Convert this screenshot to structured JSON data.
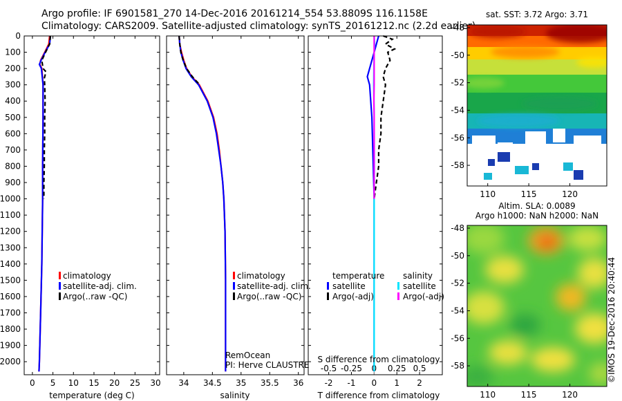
{
  "header": {
    "line1": "Argo profile: IF 6901581_270 14-Dec-2016 20161214_554 53.8809S 116.1158E",
    "line2": "Climatology: CARS2009. Satellite-adjusted climatology: synTS_20161212.nc (2.2d earlier)"
  },
  "colors": {
    "climatology": "#ff0000",
    "satellite": "#0000ff",
    "argo": "#000000",
    "sal_satellite": "#00e5ff",
    "sal_argo": "#ff00ff"
  },
  "chart_data": [
    {
      "type": "line",
      "id": "temperature",
      "xlabel": "temperature (deg C)",
      "ylabel": "",
      "xlim": [
        -2,
        31
      ],
      "ylim": [
        0,
        2080
      ],
      "xticks": [
        "0",
        "5",
        "10",
        "15",
        "20",
        "25",
        "30"
      ],
      "xtick_values": [
        0,
        5,
        10,
        15,
        20,
        25,
        30
      ],
      "yticks": [
        "0",
        "100",
        "200",
        "300",
        "400",
        "500",
        "600",
        "700",
        "800",
        "900",
        "1000",
        "1100",
        "1200",
        "1300",
        "1400",
        "1500",
        "1600",
        "1700",
        "1800",
        "1900",
        "2000"
      ],
      "ytick_values": [
        0,
        100,
        200,
        300,
        400,
        500,
        600,
        700,
        800,
        900,
        1000,
        1100,
        1200,
        1300,
        1400,
        1500,
        1600,
        1700,
        1800,
        1900,
        2000
      ],
      "legend": [
        "climatology",
        "satellite-adj. clim.",
        "Argo(..raw -QC)"
      ],
      "series": [
        {
          "name": "climatology",
          "style": "solid",
          "depth": [
            0,
            50,
            100,
            150,
            175,
            200,
            300,
            500,
            800,
            1000,
            1400,
            1700,
            2000,
            2060
          ],
          "values": [
            4.2,
            4.0,
            3.0,
            2.0,
            1.8,
            2.3,
            2.6,
            2.6,
            2.5,
            2.5,
            2.3,
            2.0,
            1.7,
            1.6
          ]
        },
        {
          "name": "satellite-adj. clim.",
          "style": "solid",
          "depth": [
            0,
            50,
            100,
            150,
            175,
            200,
            300,
            500,
            800,
            1000,
            1400,
            1700,
            2000,
            2060
          ],
          "values": [
            4.4,
            4.2,
            3.1,
            2.1,
            1.7,
            2.2,
            2.6,
            2.6,
            2.5,
            2.5,
            2.3,
            2.0,
            1.7,
            1.6
          ]
        },
        {
          "name": "Argo(..raw -QC)",
          "style": "dashed",
          "depth": [
            0,
            50,
            100,
            150,
            200,
            220,
            260,
            300,
            400,
            500,
            600,
            700,
            800,
            900,
            1000
          ],
          "values": [
            4.4,
            4.2,
            3.2,
            2.3,
            2.6,
            3.3,
            2.9,
            3.0,
            3.1,
            3.0,
            3.0,
            2.9,
            2.9,
            2.8,
            2.8
          ]
        }
      ]
    },
    {
      "type": "line",
      "id": "salinity",
      "xlabel": "salinity",
      "xlim": [
        33.7,
        36.1
      ],
      "ylim": [
        0,
        2080
      ],
      "xticks": [
        "34",
        "34.5",
        "35",
        "35.5",
        "36"
      ],
      "xtick_values": [
        34,
        34.5,
        35,
        35.5,
        36
      ],
      "legend": [
        "climatology",
        "satellite-adj. clim.",
        "Argo(..raw -QC)"
      ],
      "annotations": [
        "RemOcean",
        "PI: Herve CLAUSTRE"
      ],
      "series": [
        {
          "name": "climatology",
          "style": "solid",
          "depth": [
            0,
            50,
            100,
            150,
            200,
            250,
            300,
            400,
            500,
            600,
            700,
            800,
            900,
            1000,
            1200,
            1500,
            2060
          ],
          "values": [
            33.92,
            33.93,
            33.96,
            34.0,
            34.05,
            34.14,
            34.27,
            34.42,
            34.52,
            34.58,
            34.62,
            34.65,
            34.68,
            34.7,
            34.72,
            34.73,
            34.73
          ]
        },
        {
          "name": "satellite-adj. clim.",
          "style": "solid",
          "depth": [
            0,
            50,
            100,
            150,
            200,
            250,
            300,
            400,
            500,
            600,
            700,
            800,
            900,
            1000,
            1200,
            1500,
            2060
          ],
          "values": [
            33.92,
            33.93,
            33.95,
            33.99,
            34.04,
            34.13,
            34.26,
            34.41,
            34.51,
            34.57,
            34.61,
            34.65,
            34.68,
            34.7,
            34.72,
            34.73,
            34.73
          ]
        },
        {
          "name": "Argo(..raw -QC)",
          "style": "dashed",
          "depth": [
            0,
            50,
            100,
            150,
            200,
            250,
            300
          ],
          "values": [
            33.92,
            33.93,
            33.95,
            33.99,
            34.05,
            34.15,
            34.28
          ]
        }
      ]
    },
    {
      "type": "line",
      "id": "difference",
      "xlabel": "T difference from climatology",
      "xlabel_top": "S difference from climatology",
      "xlim": [
        -2.9,
        3.0
      ],
      "ylim": [
        0,
        2080
      ],
      "xticks": [
        "-2",
        "-1",
        "0",
        "1",
        "2"
      ],
      "xtick_values": [
        -2,
        -1,
        0,
        1,
        2
      ],
      "xticks_top": [
        "-0.5",
        "-0.25",
        "0",
        "0.25",
        "0.5"
      ],
      "xtick_top_values": [
        -0.5,
        -0.25,
        0,
        0.25,
        0.5
      ],
      "legend_groups": [
        {
          "title": "temperature",
          "items": [
            "satellite",
            "Argo(-adj)"
          ]
        },
        {
          "title": "salinity",
          "items": [
            "satellite",
            "Argo(-adj)"
          ]
        }
      ],
      "series": [
        {
          "name": "temperature satellite",
          "style": "solid",
          "depth": [
            0,
            50,
            100,
            150,
            200,
            250,
            300,
            500,
            1000,
            2060
          ],
          "values": [
            0.2,
            0.1,
            0.0,
            -0.1,
            -0.2,
            -0.3,
            -0.2,
            -0.1,
            0.0,
            0.0
          ]
        },
        {
          "name": "temperature Argo(-adj)",
          "style": "dashed",
          "depth": [
            0,
            20,
            50,
            80,
            100,
            150,
            200,
            250,
            300,
            400,
            500,
            600,
            700,
            800,
            900,
            1000
          ],
          "values": [
            0.4,
            0.8,
            0.5,
            0.9,
            0.6,
            0.7,
            0.5,
            0.4,
            0.5,
            0.4,
            0.3,
            0.3,
            0.2,
            0.2,
            0.1,
            0.0
          ]
        },
        {
          "name": "salinity satellite",
          "style": "solid",
          "depth": [
            0,
            50,
            100,
            200,
            300,
            500,
            800,
            1000,
            1500,
            2060
          ],
          "values": [
            0.0,
            0.02,
            0.0,
            -0.01,
            -0.02,
            0.0,
            0.01,
            0.0,
            0.0,
            0.0
          ]
        },
        {
          "name": "salinity Argo(-adj)",
          "style": "solid",
          "depth": [
            0,
            100,
            200,
            300,
            400,
            500,
            600,
            800,
            1000
          ],
          "values": [
            0.0,
            0.0,
            0.0,
            0.0,
            -0.01,
            0.0,
            0.0,
            0.0,
            0.0
          ]
        }
      ]
    },
    {
      "type": "heatmap",
      "id": "sst-map",
      "title": "sat. SST: 3.72 Argo: 3.71",
      "xlim": [
        107.5,
        124.5
      ],
      "ylim": [
        -59.5,
        -47.8
      ],
      "xticks": [
        "110",
        "115",
        "120"
      ],
      "xtick_values": [
        110,
        115,
        120
      ],
      "yticks": [
        "-48",
        "-50",
        "-52",
        "-54",
        "-56",
        "-58"
      ],
      "ytick_values": [
        -48,
        -50,
        -52,
        -54,
        -56,
        -58
      ]
    },
    {
      "type": "heatmap",
      "id": "sla-map",
      "title": "Altim. SLA: 0.0089",
      "subtitle": "Argo h1000: NaN h2000: NaN",
      "xlim": [
        107.5,
        124.5
      ],
      "ylim": [
        -59.5,
        -47.8
      ],
      "xticks": [
        "110",
        "115",
        "120"
      ],
      "xtick_values": [
        110,
        115,
        120
      ],
      "yticks": [
        "-48",
        "-50",
        "-52",
        "-54",
        "-56",
        "-58"
      ],
      "ytick_values": [
        -48,
        -50,
        -52,
        -54,
        -56,
        -58
      ],
      "watermark": "©IMOS 19-Dec-2016 20:40:44"
    }
  ]
}
